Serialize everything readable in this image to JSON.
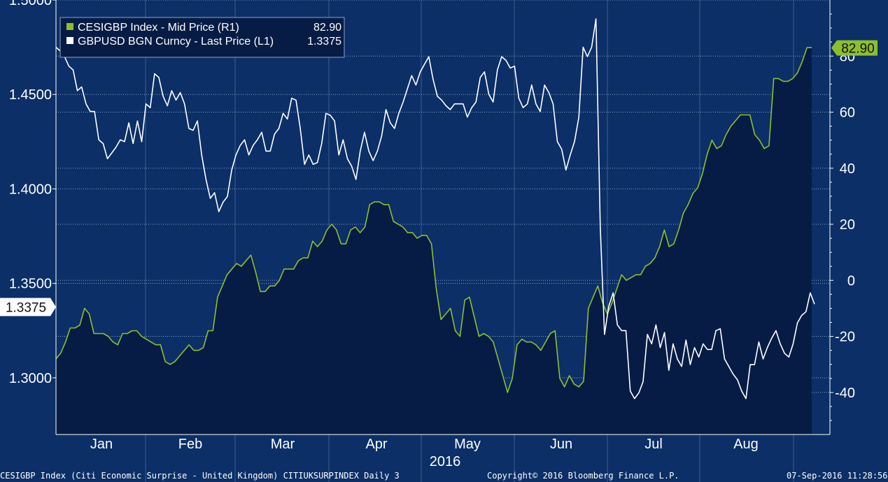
{
  "chart_data": {
    "type": "line",
    "year_label": "2016",
    "x_axis": {
      "categories": [
        "Jan",
        "Feb",
        "Mar",
        "Apr",
        "May",
        "Jun",
        "Jul",
        "Aug"
      ]
    },
    "y_left": {
      "ticks": [
        "1.3000",
        "1.3500",
        "1.4000",
        "1.4500",
        "1.5000"
      ],
      "range": [
        1.27,
        1.5
      ]
    },
    "y_right": {
      "ticks": [
        "-40",
        "-20",
        "0",
        "20",
        "40",
        "60",
        "80"
      ],
      "range": [
        -55,
        100
      ]
    },
    "legend": {
      "placement": "top-left",
      "entries": [
        {
          "label": "CESIGBP Index - Mid Price (R1)",
          "value": "82.90",
          "color": "#8cbf2e"
        },
        {
          "label": "GBPUSD BGN Curncy - Last Price (L1)",
          "value": "1.3375",
          "color": "#ffffff"
        }
      ]
    },
    "last_value_tags": {
      "right": "82.90",
      "left": "1.3375"
    },
    "grid": true,
    "series": [
      {
        "name": "CESIGBP Index - Mid Price (R1)",
        "axis": "right",
        "color": "#8cbf2e",
        "fill": "#061c45",
        "values": [
          -28,
          -26,
          -22,
          -17,
          -17,
          -16,
          -10,
          -12,
          -19,
          -19,
          -19,
          -20,
          -22,
          -23,
          -19,
          -19,
          -18,
          -18,
          -20,
          -21,
          -22,
          -23,
          -23,
          -29,
          -30,
          -29,
          -27,
          -25,
          -23,
          -25,
          -25,
          -24,
          -18,
          -18,
          -6,
          -2,
          2,
          4,
          6,
          5,
          7,
          9,
          3,
          -4,
          -4,
          -2,
          -2,
          0,
          4,
          4,
          4,
          7,
          8,
          8,
          14,
          12,
          14,
          18,
          20,
          18,
          13,
          13,
          18,
          19,
          17,
          19,
          27,
          28,
          28,
          27,
          27,
          21,
          20,
          19,
          17,
          17,
          15,
          16,
          16,
          13,
          -3,
          -14,
          -12,
          -10,
          -18,
          -20,
          -7,
          -6,
          -13,
          -20,
          -19,
          -20,
          -22,
          -28,
          -34,
          -40,
          -35,
          -23,
          -21,
          -22,
          -22,
          -23,
          -25,
          -22,
          -19,
          -18,
          -35,
          -38,
          -34,
          -37,
          -38,
          -36,
          -10,
          -6,
          -2,
          -8,
          -12,
          -8,
          -3,
          2,
          0,
          1,
          2,
          2,
          5,
          6,
          8,
          12,
          18,
          12,
          13,
          18,
          24,
          27,
          31,
          33,
          38,
          45,
          50,
          47,
          48,
          52,
          55,
          57,
          59,
          59,
          59,
          52,
          50,
          47,
          48,
          72,
          72,
          71,
          71,
          72,
          74,
          78,
          83,
          83
        ],
        "last": 82.9
      },
      {
        "name": "GBPUSD BGN Curncy - Last Price (L1)",
        "axis": "left",
        "color": "#ffffff",
        "values": [
          1.475,
          1.473,
          1.47,
          1.465,
          1.463,
          1.452,
          1.454,
          1.445,
          1.441,
          1.441,
          1.426,
          1.424,
          1.416,
          1.419,
          1.422,
          1.426,
          1.425,
          1.435,
          1.424,
          1.436,
          1.425,
          1.445,
          1.443,
          1.461,
          1.459,
          1.449,
          1.444,
          1.452,
          1.447,
          1.451,
          1.445,
          1.432,
          1.431,
          1.436,
          1.418,
          1.405,
          1.395,
          1.398,
          1.388,
          1.393,
          1.396,
          1.41,
          1.418,
          1.423,
          1.426,
          1.418,
          1.423,
          1.426,
          1.43,
          1.42,
          1.42,
          1.429,
          1.432,
          1.44,
          1.437,
          1.448,
          1.447,
          1.432,
          1.413,
          1.418,
          1.413,
          1.414,
          1.424,
          1.44,
          1.439,
          1.436,
          1.418,
          1.426,
          1.416,
          1.412,
          1.405,
          1.42,
          1.43,
          1.42,
          1.415,
          1.42,
          1.428,
          1.442,
          1.435,
          1.432,
          1.44,
          1.446,
          1.453,
          1.46,
          1.455,
          1.462,
          1.466,
          1.47,
          1.458,
          1.449,
          1.447,
          1.444,
          1.442,
          1.445,
          1.445,
          1.445,
          1.438,
          1.443,
          1.446,
          1.459,
          1.462,
          1.45,
          1.446,
          1.463,
          1.47,
          1.468,
          1.464,
          1.465,
          1.448,
          1.443,
          1.445,
          1.455,
          1.445,
          1.441,
          1.455,
          1.451,
          1.445,
          1.425,
          1.421,
          1.41,
          1.418,
          1.425,
          1.438,
          1.475,
          1.47,
          1.475,
          1.49,
          1.38,
          1.323,
          1.338,
          1.345,
          1.328,
          1.325,
          1.325,
          1.293,
          1.289,
          1.292,
          1.298,
          1.323,
          1.318,
          1.328,
          1.316,
          1.324,
          1.304,
          1.318,
          1.31,
          1.306,
          1.32,
          1.307,
          1.316,
          1.311,
          1.318,
          1.315,
          1.315,
          1.325,
          1.326,
          1.31,
          1.306,
          1.302,
          1.299,
          1.293,
          1.289,
          1.307,
          1.307,
          1.319,
          1.31,
          1.316,
          1.321,
          1.325,
          1.318,
          1.313,
          1.311,
          1.318,
          1.329,
          1.333,
          1.335,
          1.345,
          1.339
        ],
        "last": 1.3375
      }
    ]
  },
  "footer": {
    "left": "CESIGBP Index (Citi Economic Surprise - United Kingdom) CITIUKSURPINDEX  Daily 3",
    "center": "Copyright© 2016 Bloomberg Finance L.P.",
    "right": "07-Sep-2016 11:28:56"
  }
}
